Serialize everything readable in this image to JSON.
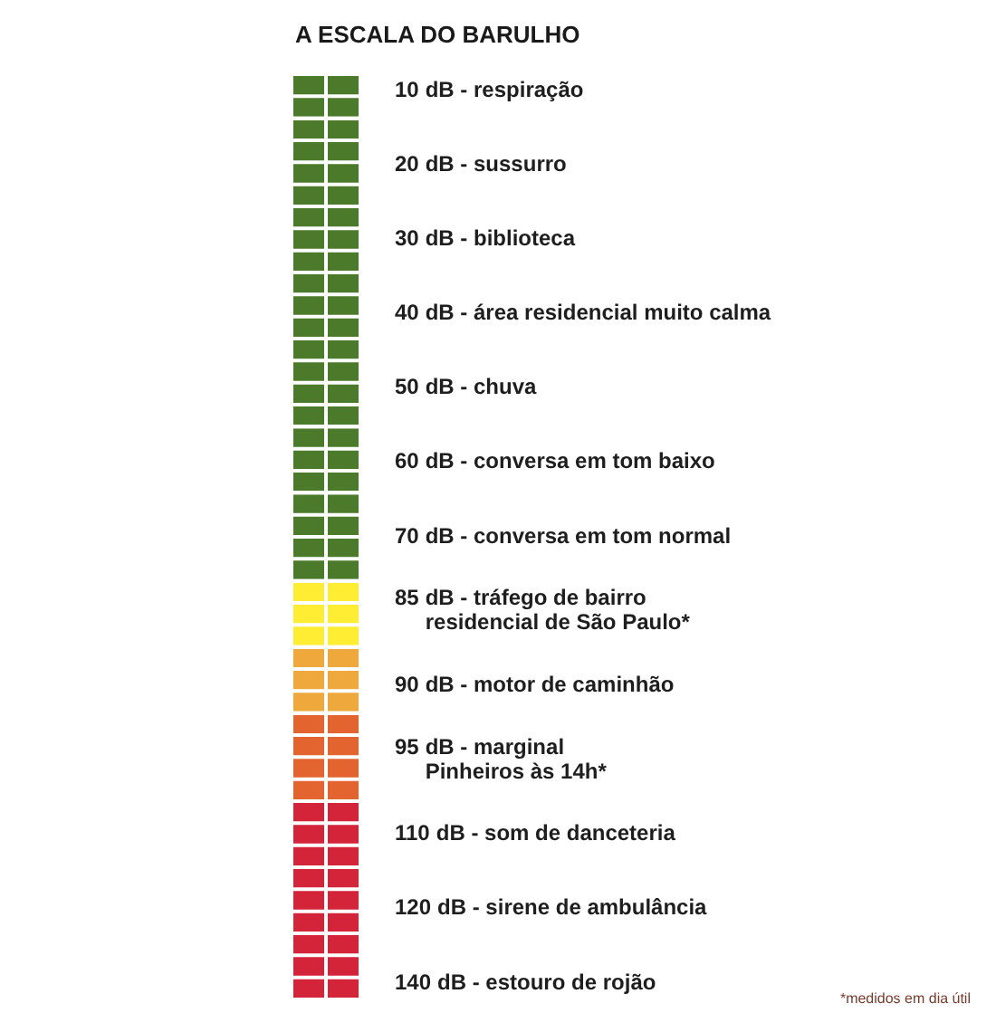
{
  "chart_data": {
    "type": "other",
    "title": "A ESCALA DO BARULHO",
    "categories": [
      "dB - respiração",
      "dB - sussurro",
      "dB - biblioteca",
      "dB - área residencial muito calma",
      "dB - chuva",
      "dB - conversa em tom baixo",
      "dB - conversa em tom normal",
      "dB - tráfego de bairro\nresidencial de São Paulo*",
      "dB - motor de caminhão",
      "dB - marginal\nPinheiros às 14h*",
      "dB - som de danceteria",
      "dB - sirene de ambulância",
      "dB - estouro de rojão"
    ],
    "values": [
      10,
      20,
      30,
      40,
      50,
      60,
      70,
      85,
      90,
      95,
      110,
      120,
      140
    ],
    "data_labels": true,
    "colors": [
      "#4b7a2b",
      "#4b7a2b",
      "#4b7a2b",
      "#4b7a2b",
      "#4b7a2b",
      "#4b7a2b",
      "#4b7a2b",
      "#ffed33",
      "#efa83b",
      "#e3642f",
      "#d4243a",
      "#d4243a",
      "#d4243a"
    ],
    "annotations": [
      "*medidos em dia útil"
    ]
  }
}
